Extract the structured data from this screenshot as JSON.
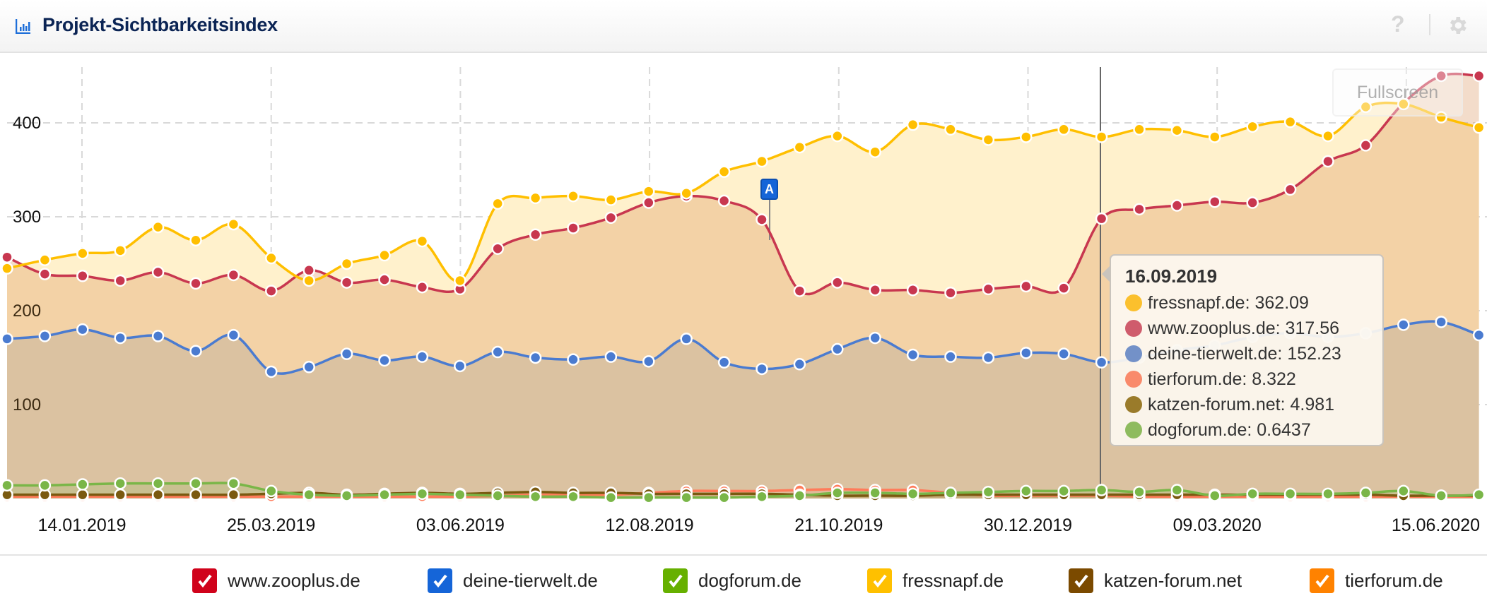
{
  "header": {
    "title": "Projekt-Sichtbarkeitsindex",
    "help_icon": "question-icon",
    "settings_icon": "gear-icon",
    "chart_icon": "bar-chart-icon"
  },
  "fullscreen_label": "Fullscreen",
  "annotation": {
    "label": "A"
  },
  "tooltip": {
    "date": "16.09.2019",
    "rows": [
      {
        "text": "fressnapf.de: 362.09",
        "color": "#fbc02d"
      },
      {
        "text": "www.zooplus.de: 317.56",
        "color": "#cf5c6c"
      },
      {
        "text": "deine-tierwelt.de: 152.23",
        "color": "#7391c8"
      },
      {
        "text": "tierforum.de: 8.322",
        "color": "#f98a6b"
      },
      {
        "text": "katzen-forum.net: 4.981",
        "color": "#9a7b2a"
      },
      {
        "text": "dogforum.de: 0.6437",
        "color": "#8ebb5e"
      }
    ]
  },
  "legend": [
    {
      "label": "www.zooplus.de",
      "color": "#d0021b",
      "checked": true
    },
    {
      "label": "deine-tierwelt.de",
      "color": "#1565d8",
      "checked": true
    },
    {
      "label": "dogforum.de",
      "color": "#66b000",
      "checked": true
    },
    {
      "label": "fressnapf.de",
      "color": "#ffc000",
      "checked": true
    },
    {
      "label": "katzen-forum.net",
      "color": "#7b4a00",
      "checked": true
    },
    {
      "label": "tierforum.de",
      "color": "#ff8200",
      "checked": true
    }
  ],
  "chart_data": {
    "type": "area",
    "title": "Projekt-Sichtbarkeitsindex",
    "x_start": "17.12.2018",
    "x_interval": "2 weeks",
    "x_tick_labels": [
      "14.01.2019",
      "25.03.2019",
      "03.06.2019",
      "12.08.2019",
      "21.10.2019",
      "30.12.2019",
      "09.03.2020",
      "15.06.2020"
    ],
    "y_ticks": [
      100,
      200,
      300,
      400
    ],
    "ylim": [
      0,
      470
    ],
    "grid": true,
    "legend_position": "bottom",
    "series": [
      {
        "name": "fressnapf.de",
        "color": "#ffbf00",
        "fill": "#fff1cc",
        "values": [
          245,
          254,
          261,
          264,
          289,
          275,
          292,
          256,
          232,
          250,
          259,
          274,
          232,
          314,
          320,
          322,
          318,
          327,
          325,
          348,
          359,
          374,
          386,
          369,
          398,
          393,
          382,
          385,
          393,
          385,
          393,
          392,
          385,
          396,
          401,
          386,
          417,
          420,
          406,
          395
        ]
      },
      {
        "name": "www.zooplus.de",
        "color": "#c8374f",
        "fill": "rgba(214,138,80,0.30)",
        "values": [
          257,
          239,
          237,
          232,
          241,
          229,
          238,
          221,
          243,
          230,
          233,
          225,
          223,
          266,
          281,
          288,
          299,
          315,
          322,
          317,
          297,
          221,
          230,
          222,
          222,
          219,
          223,
          226,
          224,
          298,
          308,
          312,
          316,
          315,
          329,
          359,
          376,
          421,
          450,
          450
        ]
      },
      {
        "name": "deine-tierwelt.de",
        "color": "#4a7bd0",
        "fill": "rgba(110,120,140,0.18)",
        "values": [
          170,
          173,
          180,
          171,
          173,
          157,
          174,
          135,
          140,
          154,
          147,
          151,
          141,
          156,
          150,
          148,
          151,
          146,
          170,
          145,
          138,
          143,
          159,
          171,
          153,
          151,
          150,
          155,
          154,
          145,
          150,
          158,
          163,
          172,
          176,
          172,
          176,
          185,
          188,
          174
        ]
      },
      {
        "name": "dogforum.de",
        "color": "#7ab648",
        "fill": "rgba(122,182,72,0.18)",
        "values": [
          14,
          14,
          15,
          16,
          16,
          16,
          16,
          8,
          4,
          3,
          4,
          5,
          4,
          3,
          2,
          2,
          1,
          1,
          1,
          1,
          2,
          3,
          6,
          6,
          5,
          6,
          7,
          8,
          8,
          9,
          7,
          9,
          3,
          5,
          5,
          5,
          6,
          8,
          3,
          4
        ]
      },
      {
        "name": "katzen-forum.net",
        "color": "#7a5a10",
        "fill": "rgba(122,90,16,0.12)",
        "values": [
          4,
          4,
          4,
          4,
          4,
          4,
          4,
          5,
          6,
          4,
          5,
          6,
          5,
          6,
          7,
          6,
          6,
          5,
          5,
          5,
          5,
          4,
          3,
          3,
          3,
          4,
          4,
          4,
          4,
          4,
          4,
          4,
          4,
          4,
          4,
          4,
          4,
          3,
          3,
          3
        ]
      },
      {
        "name": "tierforum.de",
        "color": "#ff7b5a",
        "fill": "rgba(255,123,90,0.12)",
        "values": [
          2,
          2,
          2,
          2,
          2,
          2,
          2,
          2,
          2,
          2,
          2,
          2,
          2,
          3,
          4,
          4,
          4,
          6,
          8,
          8,
          8,
          9,
          10,
          9,
          9,
          6,
          3,
          3,
          3,
          3,
          2,
          2,
          2,
          2,
          2,
          2,
          2,
          2,
          2,
          2
        ]
      }
    ],
    "highlight_index": 29
  }
}
